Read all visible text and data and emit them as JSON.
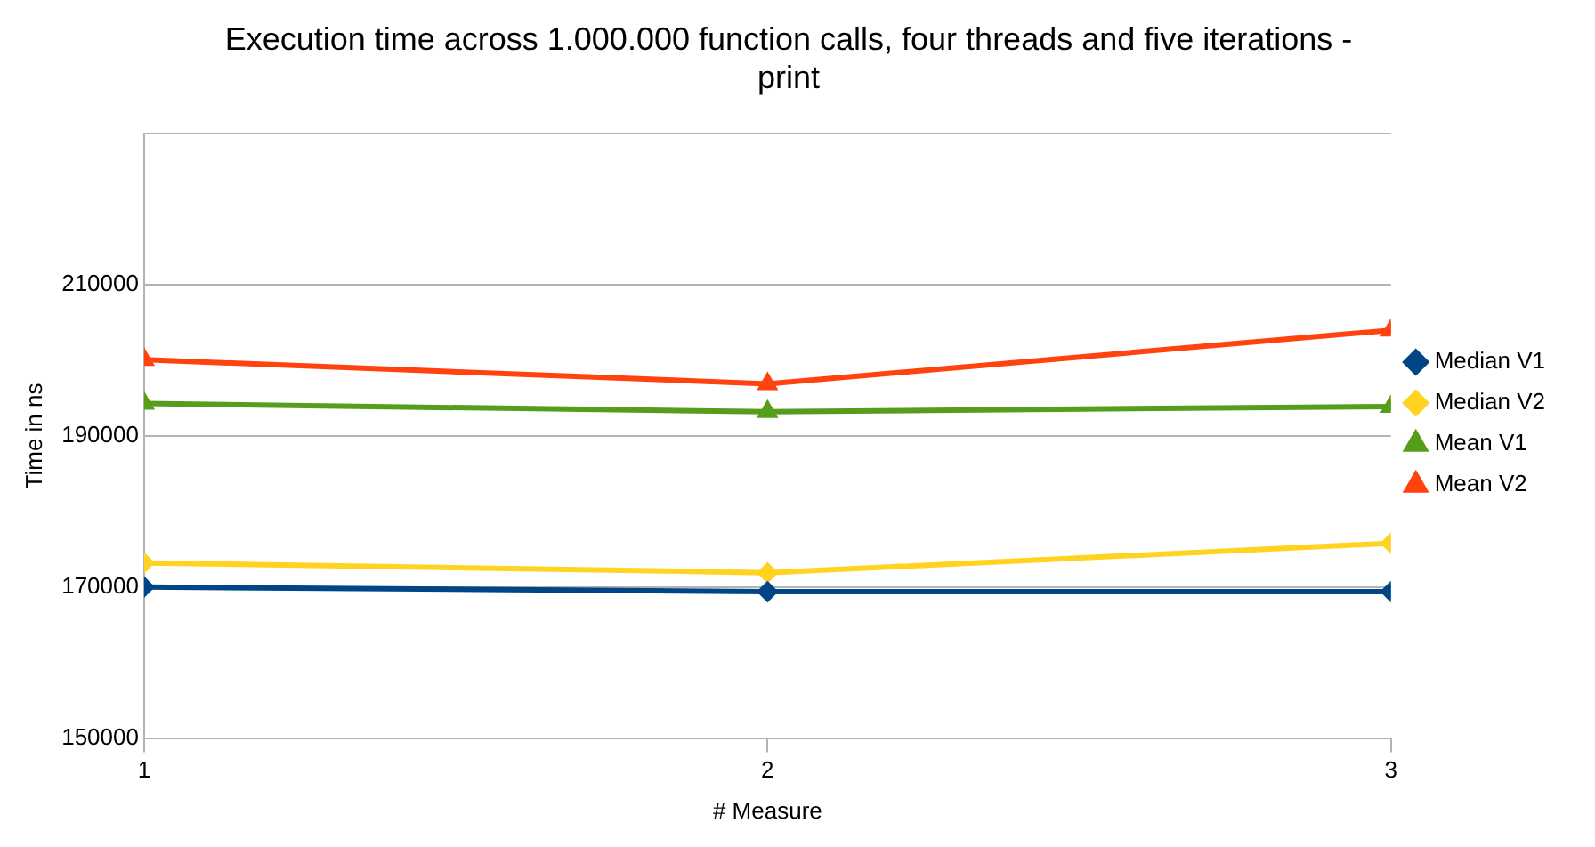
{
  "chart_data": {
    "type": "line",
    "title": "Execution time across 1.000.000 function calls, four threads and five iterations - print",
    "xlabel": "# Measure",
    "ylabel": "Time in ns",
    "x": [
      1,
      2,
      3
    ],
    "xlim": [
      1,
      3
    ],
    "xticks": [
      1,
      2,
      3
    ],
    "ylim": [
      150000,
      230000
    ],
    "yticks": [
      150000,
      170000,
      190000,
      210000,
      {
        "value": 230000,
        "label": null
      }
    ],
    "grid": "y",
    "legend": "right",
    "line_style": "solid",
    "series": [
      {
        "name": "Median V1",
        "color": "#004586",
        "marker": "diamond",
        "values": [
          170000,
          169400,
          169400
        ]
      },
      {
        "name": "Median V2",
        "color": "#ffd320",
        "marker": "diamond",
        "values": [
          173200,
          171900,
          175800
        ]
      },
      {
        "name": "Mean V1",
        "color": "#579d1c",
        "marker": "triangle",
        "values": [
          194300,
          193200,
          193900
        ]
      },
      {
        "name": "Mean V2",
        "color": "#ff420e",
        "marker": "triangle",
        "values": [
          200100,
          196900,
          204000
        ]
      }
    ]
  }
}
